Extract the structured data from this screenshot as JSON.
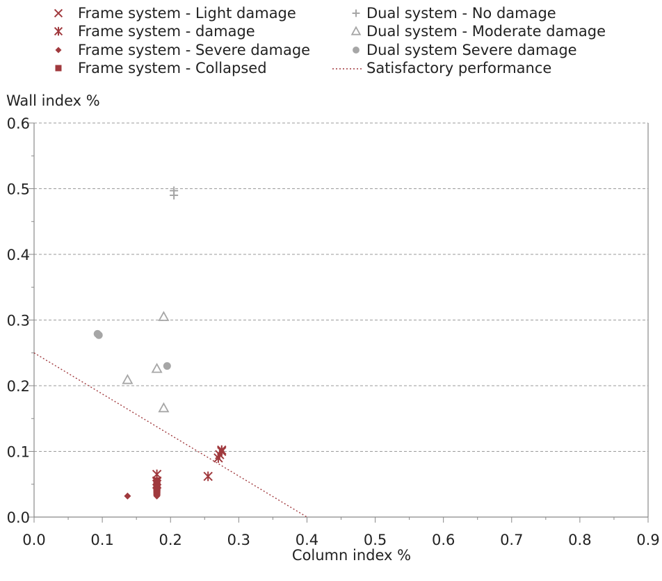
{
  "chart_data": {
    "type": "scatter",
    "xlabel": "Column index %",
    "ylabel": "Wall index %",
    "xlim": [
      0,
      0.9
    ],
    "ylim": [
      0,
      0.6
    ],
    "x_ticks": [
      "0.0",
      "0.1",
      "0.2",
      "0.3",
      "0.4",
      "0.5",
      "0.6",
      "0.7",
      "0.8",
      "0.9"
    ],
    "y_ticks": [
      "0.0",
      "0.1",
      "0.2",
      "0.3",
      "0.4",
      "0.5",
      "0.6"
    ],
    "grid": "horizontal dashed",
    "legend_position": "top",
    "colors": {
      "frame": "#a0393d",
      "dual": "#a6a6a6",
      "axis": "#888888",
      "grid": "#9a9a9a"
    },
    "series": [
      {
        "name": "Frame system - Light damage",
        "marker": "x",
        "color": "#a0393d",
        "points": []
      },
      {
        "name": "Frame system - damage",
        "marker": "asterisk",
        "color": "#a0393d",
        "points": [
          [
            0.18,
            0.065
          ],
          [
            0.18,
            0.055
          ],
          [
            0.18,
            0.05
          ],
          [
            0.255,
            0.062
          ],
          [
            0.27,
            0.09
          ],
          [
            0.272,
            0.095
          ],
          [
            0.275,
            0.1
          ],
          [
            0.275,
            0.102
          ]
        ]
      },
      {
        "name": "Frame system - Severe damage",
        "marker": "diamond",
        "color": "#a0393d",
        "points": [
          [
            0.137,
            0.032
          ],
          [
            0.18,
            0.032
          ],
          [
            0.18,
            0.05
          ]
        ]
      },
      {
        "name": "Frame system - Collapsed",
        "marker": "square",
        "color": "#a0393d",
        "points": [
          [
            0.18,
            0.038
          ],
          [
            0.18,
            0.042
          ],
          [
            0.18,
            0.045
          ],
          [
            0.18,
            0.048
          ],
          [
            0.18,
            0.052
          ],
          [
            0.18,
            0.055
          ]
        ]
      },
      {
        "name": "Dual system - No damage",
        "marker": "plus",
        "color": "#a6a6a6",
        "points": [
          [
            0.205,
            0.497
          ],
          [
            0.205,
            0.49
          ]
        ]
      },
      {
        "name": "Dual system - Moderate damage",
        "marker": "triangle",
        "color": "#a6a6a6",
        "points": [
          [
            0.19,
            0.305
          ],
          [
            0.18,
            0.226
          ],
          [
            0.137,
            0.209
          ],
          [
            0.19,
            0.166
          ]
        ]
      },
      {
        "name": "Dual system Severe damage",
        "marker": "circle",
        "color": "#a6a6a6",
        "points": [
          [
            0.093,
            0.279
          ],
          [
            0.095,
            0.277
          ],
          [
            0.195,
            0.23
          ]
        ]
      }
    ],
    "lines": [
      {
        "name": "Satisfactory performance",
        "style": "dotted",
        "color": "#a0393d",
        "points": [
          [
            0,
            0.25
          ],
          [
            0.4,
            0
          ]
        ]
      }
    ]
  }
}
